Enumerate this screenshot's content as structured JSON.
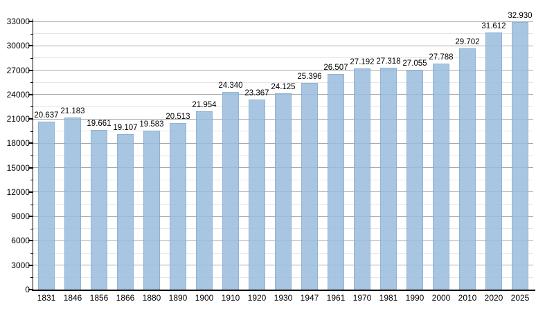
{
  "chart_data": {
    "type": "bar",
    "title": "",
    "xlabel": "",
    "ylabel": "",
    "categories": [
      "1831",
      "1846",
      "1856",
      "1866",
      "1880",
      "1890",
      "1900",
      "1910",
      "1920",
      "1930",
      "1947",
      "1961",
      "1970",
      "1981",
      "1990",
      "2000",
      "2010",
      "2020",
      "2025"
    ],
    "values": [
      20637,
      21183,
      19661,
      19107,
      19583,
      20513,
      21954,
      24340,
      23367,
      24125,
      25396,
      26507,
      27192,
      27318,
      27055,
      27788,
      29702,
      31612,
      32930
    ],
    "value_labels": [
      "20.637",
      "21.183",
      "19.661",
      "19.107",
      "19.583",
      "20.513",
      "21.954",
      "24.340",
      "23.367",
      "24.125",
      "25.396",
      "26.507",
      "27.192",
      "27.318",
      "27.055",
      "27.788",
      "29.702",
      "31.612",
      "32.930"
    ],
    "ylim": [
      0,
      33000
    ],
    "y_major_ticks": [
      0,
      3000,
      6000,
      9000,
      12000,
      15000,
      18000,
      21000,
      24000,
      27000,
      30000,
      33000
    ],
    "y_major_tick_labels": [
      "0",
      "3000",
      "6000",
      "9000",
      "12000",
      "15000",
      "18000",
      "21000",
      "24000",
      "27000",
      "30000",
      "33000"
    ],
    "y_minor_step": 1500,
    "grid": "horizontal major+minor",
    "legend": "none",
    "colors": {
      "bar_fill": "#99bdde",
      "bar_edge": "#7ea6cc",
      "grid_major": "#a6a6a6",
      "grid_minor": "#e6e6e6",
      "axis": "#000000",
      "text": "#000000",
      "background": "#ffffff"
    }
  }
}
